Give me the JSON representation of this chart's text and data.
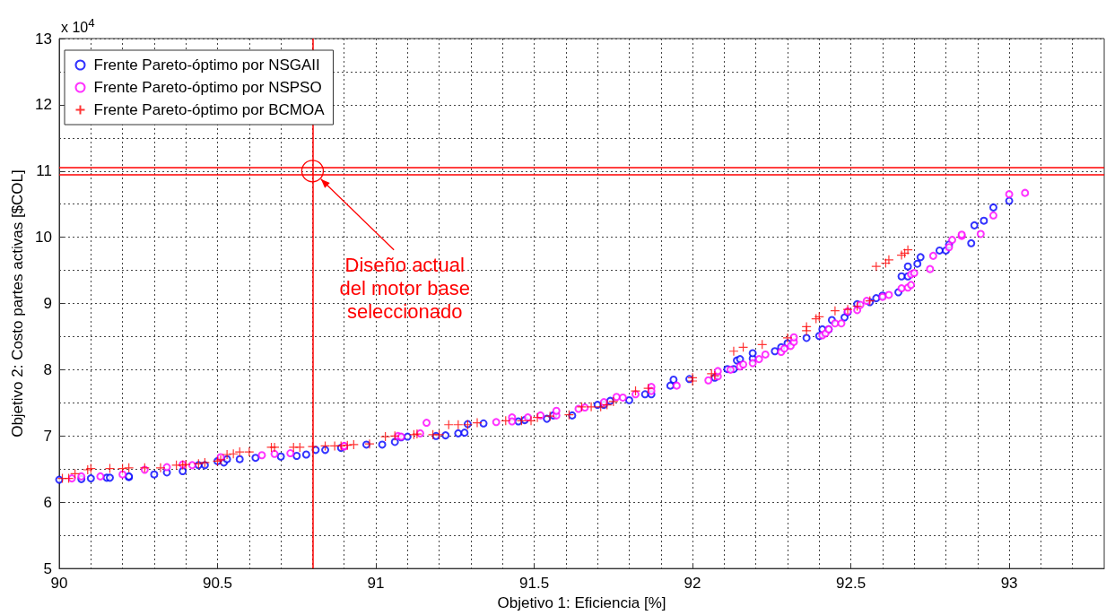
{
  "chart_data": {
    "type": "scatter",
    "xlabel": "Objetivo 1: Eficiencia [%]",
    "ylabel": "Objetivo 2: Costo partes activas [$COL]",
    "xlim": [
      90,
      93.3
    ],
    "xticks": [
      90,
      90.5,
      91,
      91.5,
      92,
      92.5,
      93
    ],
    "ylim": [
      5,
      13
    ],
    "yticks": [
      5,
      6,
      7,
      8,
      9,
      10,
      11,
      12,
      13
    ],
    "grid": true,
    "legend": "top left",
    "annotations": [
      "x 10$^{4}$",
      "Diseño actual\ndel motor base\nseleccionado"
    ],
    "ref_lines": [
      {
        "axis": "x",
        "value": 90.8,
        "color": "#ff0000"
      },
      {
        "axis": "y",
        "value": 10.95,
        "color": "#ff0000"
      },
      {
        "axis": "y",
        "value": 11.05,
        "color": "#ff0000"
      }
    ],
    "series": [
      {
        "name": "Frente Pareto-óptimo por NSGAII",
        "color": "#0000ff",
        "marker": "circle",
        "x": [
          90.0,
          90.07,
          90.1,
          90.15,
          90.16,
          90.22,
          90.22,
          90.3,
          90.34,
          90.39,
          90.44,
          90.46,
          90.5,
          90.52,
          90.53,
          90.57,
          90.62,
          90.7,
          90.75,
          90.78,
          90.81,
          90.84,
          90.89,
          90.97,
          91.02,
          91.06,
          91.08,
          91.1,
          91.19,
          91.22,
          91.26,
          91.28,
          91.29,
          91.34,
          91.45,
          91.47,
          91.54,
          91.56,
          91.62,
          91.7,
          91.72,
          91.74,
          91.8,
          91.85,
          91.87,
          91.93,
          91.94,
          91.99,
          92.07,
          92.11,
          92.13,
          92.14,
          92.15,
          92.19,
          92.19,
          92.26,
          92.28,
          92.3,
          92.36,
          92.4,
          92.41,
          92.43,
          92.44,
          92.48,
          92.49,
          92.52,
          92.56,
          92.58,
          92.6,
          92.65,
          92.66,
          92.68,
          92.68,
          92.71,
          92.72,
          92.78,
          92.8,
          92.81,
          92.88,
          92.89,
          92.92,
          92.95,
          93.0
        ],
        "values": [
          6.34,
          6.35,
          6.36,
          6.37,
          6.37,
          6.38,
          6.39,
          6.42,
          6.45,
          6.47,
          6.56,
          6.56,
          6.62,
          6.6,
          6.65,
          6.65,
          6.67,
          6.69,
          6.7,
          6.72,
          6.79,
          6.79,
          6.82,
          6.87,
          6.87,
          6.91,
          6.98,
          6.99,
          7.0,
          7.01,
          7.04,
          7.05,
          7.18,
          7.19,
          7.22,
          7.24,
          7.26,
          7.31,
          7.31,
          7.47,
          7.47,
          7.53,
          7.54,
          7.63,
          7.63,
          7.76,
          7.85,
          7.86,
          7.88,
          8.01,
          8.01,
          8.14,
          8.16,
          8.17,
          8.25,
          8.28,
          8.34,
          8.4,
          8.48,
          8.51,
          8.61,
          8.61,
          8.75,
          8.79,
          8.87,
          8.99,
          9.02,
          9.08,
          9.12,
          9.17,
          9.41,
          9.41,
          9.56,
          9.6,
          9.7,
          9.8,
          9.8,
          9.89,
          9.91,
          10.18,
          10.25,
          10.45,
          10.55
        ]
      },
      {
        "name": "Frente Pareto-óptimo por NSPSO",
        "color": "#ff00ff",
        "marker": "circle",
        "x": [
          90.04,
          90.07,
          90.13,
          90.2,
          90.27,
          90.34,
          90.39,
          90.42,
          90.51,
          90.64,
          90.68,
          90.73,
          90.9,
          90.9,
          91.07,
          91.08,
          91.14,
          91.16,
          91.38,
          91.43,
          91.43,
          91.48,
          91.52,
          91.57,
          91.57,
          91.64,
          91.66,
          91.72,
          91.76,
          91.78,
          91.82,
          91.87,
          91.87,
          91.95,
          92.05,
          92.08,
          92.08,
          92.12,
          92.15,
          92.16,
          92.19,
          92.21,
          92.23,
          92.28,
          92.29,
          92.31,
          92.32,
          92.32,
          92.41,
          92.42,
          92.43,
          92.45,
          92.47,
          92.49,
          92.52,
          92.53,
          92.55,
          92.6,
          92.62,
          92.66,
          92.68,
          92.69,
          92.69,
          92.7,
          92.75,
          92.76,
          92.81,
          92.82,
          92.85,
          92.85,
          92.91,
          92.95,
          93.0,
          93.05
        ],
        "values": [
          6.36,
          6.39,
          6.39,
          6.42,
          6.49,
          6.53,
          6.57,
          6.56,
          6.68,
          6.71,
          6.73,
          6.74,
          6.84,
          6.85,
          7.0,
          6.99,
          7.04,
          7.2,
          7.21,
          7.28,
          7.22,
          7.28,
          7.31,
          7.31,
          7.38,
          7.41,
          7.43,
          7.51,
          7.59,
          7.58,
          7.63,
          7.74,
          7.68,
          7.76,
          7.84,
          7.9,
          7.98,
          8.0,
          8.05,
          8.08,
          8.1,
          8.16,
          8.23,
          8.27,
          8.32,
          8.36,
          8.42,
          8.49,
          8.52,
          8.55,
          8.61,
          8.7,
          8.7,
          8.88,
          8.9,
          8.98,
          9.04,
          9.1,
          9.13,
          9.23,
          9.24,
          9.28,
          9.44,
          9.46,
          9.52,
          9.72,
          9.85,
          9.96,
          10.02,
          10.04,
          10.05,
          10.33,
          10.65,
          10.67
        ]
      },
      {
        "name": "Frente Pareto-óptimo por BCMOA",
        "color": "#ff0000",
        "marker": "cross",
        "x": [
          90.01,
          90.03,
          90.05,
          90.09,
          90.1,
          90.16,
          90.2,
          90.22,
          90.27,
          90.32,
          90.37,
          90.39,
          90.4,
          90.44,
          90.46,
          90.5,
          90.51,
          90.53,
          90.55,
          90.57,
          90.6,
          90.67,
          90.68,
          90.74,
          90.76,
          90.8,
          90.84,
          90.87,
          90.89,
          90.91,
          90.93,
          90.98,
          91.03,
          91.06,
          91.12,
          91.13,
          91.18,
          91.2,
          91.23,
          91.26,
          91.29,
          91.32,
          91.41,
          91.46,
          91.49,
          91.51,
          91.55,
          91.61,
          91.65,
          91.68,
          91.71,
          91.73,
          91.75,
          91.82,
          91.86,
          92.0,
          92.0,
          92.06,
          92.07,
          92.13,
          92.16,
          92.22,
          92.3,
          92.36,
          92.36,
          92.39,
          92.4,
          92.45,
          92.49,
          92.52,
          92.56,
          92.58,
          92.61,
          92.62,
          92.66,
          92.67,
          92.68
        ],
        "values": [
          6.36,
          6.36,
          6.43,
          6.49,
          6.51,
          6.51,
          6.51,
          6.52,
          6.52,
          6.52,
          6.56,
          6.56,
          6.57,
          6.58,
          6.6,
          6.62,
          6.64,
          6.72,
          6.73,
          6.76,
          6.76,
          6.83,
          6.83,
          6.83,
          6.83,
          6.84,
          6.85,
          6.85,
          6.85,
          6.86,
          6.87,
          6.88,
          6.99,
          7.0,
          7.02,
          7.03,
          7.02,
          7.02,
          7.17,
          7.17,
          7.17,
          7.2,
          7.23,
          7.23,
          7.23,
          7.28,
          7.3,
          7.32,
          7.44,
          7.44,
          7.44,
          7.47,
          7.52,
          7.68,
          7.72,
          7.88,
          7.83,
          7.94,
          7.91,
          8.28,
          8.34,
          8.38,
          8.48,
          8.65,
          8.59,
          8.77,
          8.8,
          8.89,
          8.91,
          8.96,
          9.04,
          9.56,
          9.61,
          9.66,
          9.73,
          9.76,
          9.81
        ]
      }
    ]
  }
}
